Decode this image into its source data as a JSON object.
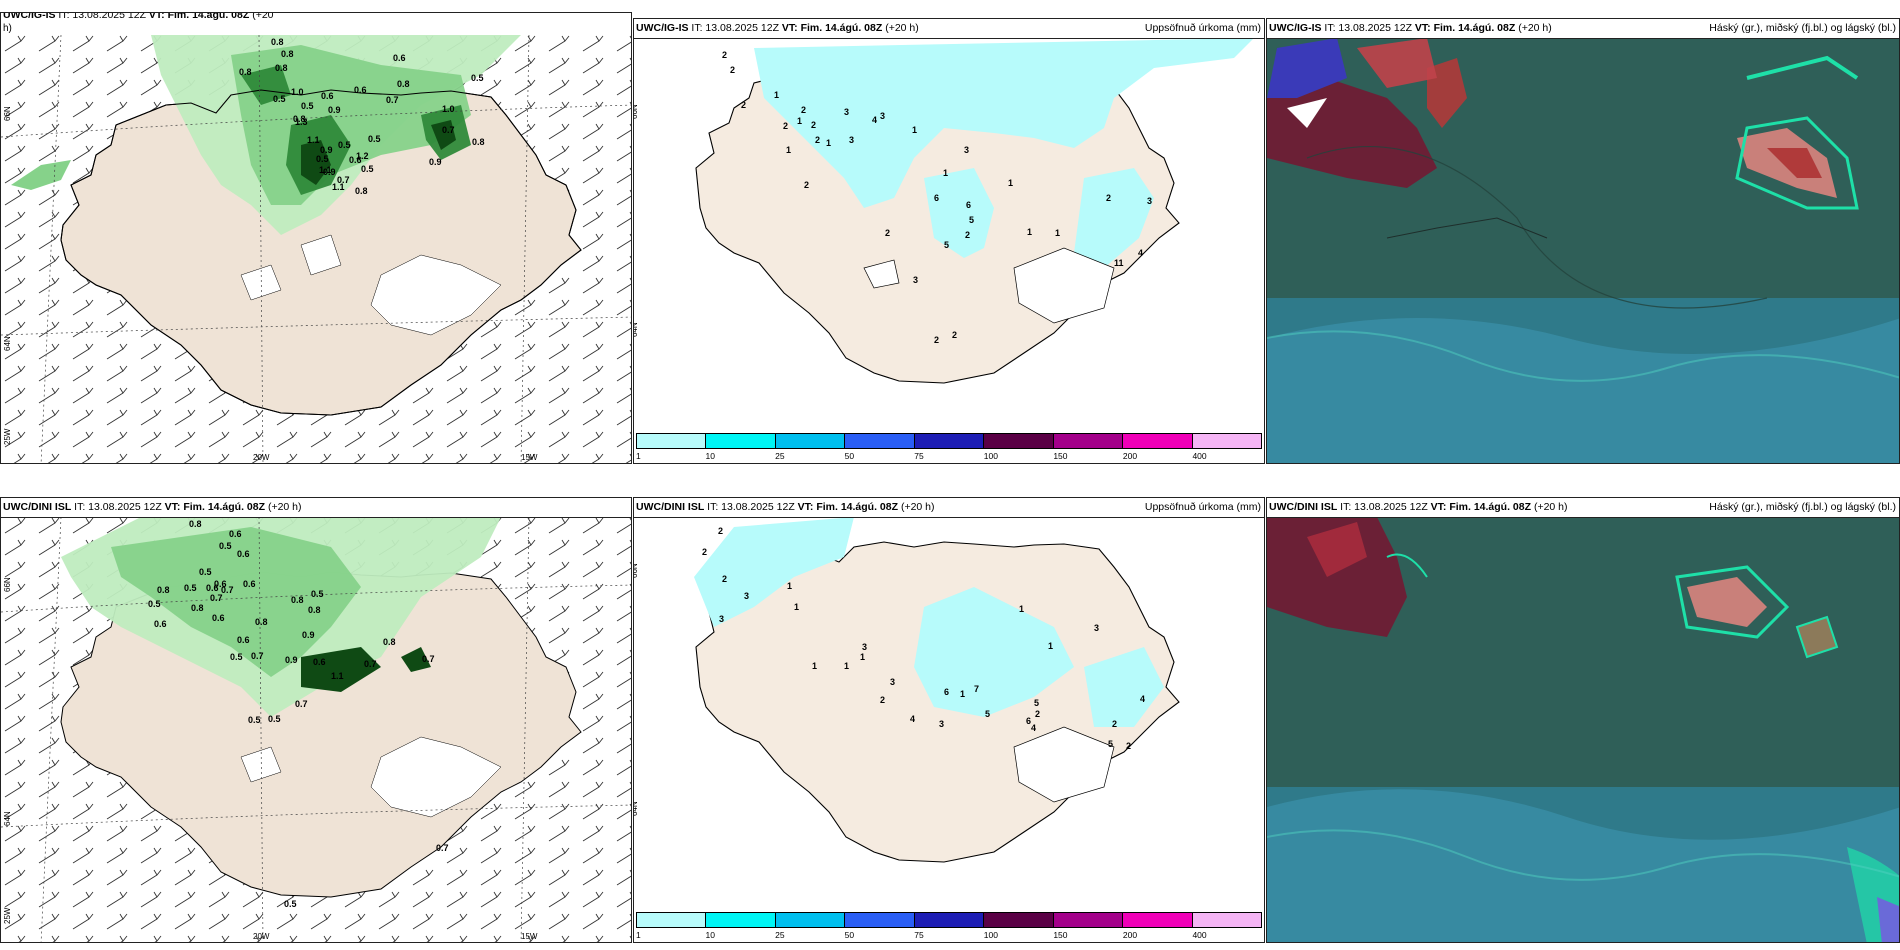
{
  "panels": {
    "p1": {
      "model": "UWC/IG-IS",
      "it": " IT: 13.08.2025 12Z ",
      "vt": "VT: Fim. 14.ágú. 08Z",
      "lead": " (+20",
      "cont": "h)"
    },
    "p2": {
      "model": "UWC/IG-IS",
      "it": " IT: 13.08.2025 12Z ",
      "vt": "VT: Fim. 14.ágú. 08Z",
      "lead": " (+20 h)",
      "title_right": "Uppsöfnuð úrkoma (mm)"
    },
    "p3": {
      "model": "UWC/IG-IS",
      "it": " IT: 13.08.2025 12Z ",
      "vt": "VT: Fim. 14.ágú. 08Z",
      "lead": " (+20 h)",
      "title_right": "Háský (gr.), miðský (fj.bl.) og lágský (bl.)"
    },
    "p4": {
      "model": "UWC/DINI ISL",
      "it": " IT: 13.08.2025 12Z ",
      "vt": "VT: Fim. 14.ágú. 08Z",
      "lead": " (+20 h)"
    },
    "p5": {
      "model": "UWC/DINI ISL",
      "it": " IT: 13.08.2025 12Z ",
      "vt": "VT: Fim. 14.ágú. 08Z",
      "lead": " (+20 h)",
      "title_right": "Uppsöfnuð úrkoma (mm)"
    },
    "p6": {
      "model": "UWC/DINI ISL",
      "it": " IT: 13.08.2025 12Z ",
      "vt": "VT: Fim. 14.ágú. 08Z",
      "lead": " (+20 h)",
      "title_right": "Háský (gr.), miðský (fj.bl.) og lágský (bl.)"
    }
  },
  "axes": {
    "lon1": "20W",
    "lon2": "15W",
    "lat_top": "66N",
    "lat_bot": "64N",
    "lon_left": "25W"
  },
  "colorbar": {
    "colors": [
      "#b7fbfb",
      "#00f5f5",
      "#00bfef",
      "#2a5ef5",
      "#1d1db5",
      "#5a0045",
      "#a3008a",
      "#f000b8",
      "#f5b5f5"
    ],
    "ticks": [
      "1",
      "10",
      "25",
      "50",
      "75",
      "100",
      "150",
      "200",
      "400"
    ]
  },
  "precip_labels_top": [
    "0.8",
    "0.8",
    "0.8",
    "0.8",
    "0.6",
    "0.5",
    "0.8",
    "0.5",
    "1.0",
    "0.6",
    "0.6",
    "0.5",
    "0.8",
    "0.7",
    "0.9",
    "1.3",
    "1.1",
    "0.9",
    "0.5",
    "0.5",
    "0.5",
    "1.2",
    "1.0",
    "0.7",
    "0.9",
    "0.5",
    "0.8",
    "0.6",
    "0.7",
    "1.1",
    "0.8",
    "1.1",
    "0.9"
  ],
  "precip_labels_bottom": [
    "0.8",
    "0.6",
    "0.5",
    "0.6",
    "0.5",
    "0.6",
    "0.8",
    "0.5",
    "0.6",
    "0.7",
    "0.8",
    "0.5",
    "0.7",
    "0.6",
    "0.6",
    "0.6",
    "0.8",
    "0.8",
    "0.5",
    "0.8",
    "0.6",
    "0.7",
    "0.5",
    "0.9",
    "0.9",
    "0.6",
    "0.8",
    "0.7",
    "1.1",
    "0.7",
    "0.7",
    "0.5",
    "0.5",
    "0.5",
    "0.7"
  ],
  "accum_labels_top": [
    "2",
    "2",
    "2",
    "1",
    "1",
    "1",
    "2",
    "2",
    "2",
    "2",
    "3",
    "4",
    "3",
    "3",
    "1",
    "1",
    "1",
    "2",
    "3",
    "6",
    "6",
    "5",
    "5",
    "3",
    "2",
    "2",
    "1",
    "1",
    "11",
    "4",
    "3",
    "2",
    "2",
    "2",
    "1"
  ],
  "accum_labels_bottom": [
    "2",
    "2",
    "2",
    "3",
    "3",
    "1",
    "1",
    "1",
    "1",
    "1",
    "3",
    "3",
    "6",
    "7",
    "5",
    "5",
    "6",
    "4",
    "2",
    "2",
    "1",
    "3",
    "4",
    "5",
    "2",
    "2",
    "1",
    "1",
    "3",
    "4"
  ]
}
